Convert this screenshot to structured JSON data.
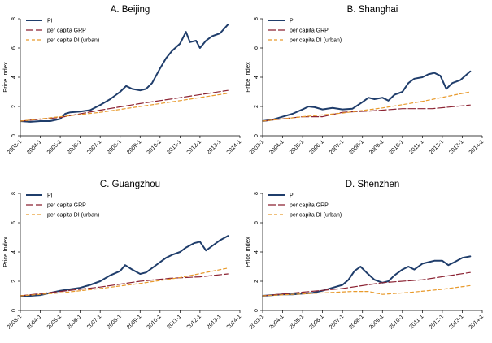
{
  "chart_data": [
    {
      "type": "line",
      "title": "A. Beijing",
      "ylabel": "Price Index",
      "xlabel": "",
      "ylim": [
        0,
        8
      ],
      "yticks": [
        "0",
        "2",
        "4",
        "6",
        "8"
      ],
      "xlim": [
        2003.0,
        2014.0
      ],
      "xticks": [
        "2003-1",
        "2004-1",
        "2005-1",
        "2006-1",
        "2007-1",
        "2008-1",
        "2009-1",
        "2010-1",
        "2011-1",
        "2012-1",
        "2013-1",
        "2014-1"
      ],
      "legend_position": "top-left",
      "series": [
        {
          "name": "PI",
          "color": "#1f3d6b",
          "style": "solid",
          "x": [
            2003.0,
            2003.5,
            2004.0,
            2004.5,
            2005.0,
            2005.25,
            2005.5,
            2006.0,
            2006.5,
            2007.0,
            2007.5,
            2008.0,
            2008.3,
            2008.6,
            2009.0,
            2009.3,
            2009.6,
            2010.0,
            2010.3,
            2010.6,
            2011.0,
            2011.3,
            2011.5,
            2011.8,
            2012.0,
            2012.3,
            2012.6,
            2013.0,
            2013.4
          ],
          "y": [
            1.0,
            0.95,
            1.0,
            1.0,
            1.15,
            1.5,
            1.6,
            1.65,
            1.75,
            2.1,
            2.5,
            3.0,
            3.4,
            3.2,
            3.1,
            3.2,
            3.6,
            4.6,
            5.3,
            5.8,
            6.3,
            7.1,
            6.4,
            6.5,
            6.0,
            6.5,
            6.8,
            7.0,
            7.6
          ]
        },
        {
          "name": "per capita GRP",
          "color": "#8b2232",
          "style": "longdash",
          "x": [
            2003.0,
            2005.0,
            2007.0,
            2009.0,
            2011.0,
            2013.4
          ],
          "y": [
            1.0,
            1.25,
            1.75,
            2.2,
            2.6,
            3.1
          ]
        },
        {
          "name": "per capita DI (urban)",
          "color": "#e89a2c",
          "style": "dash",
          "x": [
            2003.0,
            2005.0,
            2007.0,
            2009.0,
            2011.0,
            2013.4
          ],
          "y": [
            1.0,
            1.3,
            1.6,
            2.0,
            2.4,
            2.9
          ]
        }
      ]
    },
    {
      "type": "line",
      "title": "B. Shanghai",
      "ylabel": "Price Index",
      "xlabel": "",
      "ylim": [
        0,
        8
      ],
      "yticks": [
        "0",
        "2",
        "4",
        "6",
        "8"
      ],
      "xlim": [
        2003.0,
        2014.0
      ],
      "xticks": [
        "2003-1",
        "2004-1",
        "2005-1",
        "2006-1",
        "2007-1",
        "2008-1",
        "2009-1",
        "2010-1",
        "2011-1",
        "2012-1",
        "2013-1",
        "2014-1"
      ],
      "legend_position": "top-left",
      "series": [
        {
          "name": "PI",
          "color": "#1f3d6b",
          "style": "solid",
          "x": [
            2003.0,
            2003.5,
            2004.0,
            2004.5,
            2005.0,
            2005.3,
            2005.6,
            2006.0,
            2006.5,
            2007.0,
            2007.5,
            2008.0,
            2008.3,
            2008.6,
            2009.0,
            2009.3,
            2009.6,
            2010.0,
            2010.3,
            2010.6,
            2011.0,
            2011.3,
            2011.6,
            2011.9,
            2012.2,
            2012.5,
            2012.9,
            2013.4
          ],
          "y": [
            1.0,
            1.1,
            1.3,
            1.5,
            1.8,
            2.0,
            1.95,
            1.8,
            1.9,
            1.8,
            1.85,
            2.3,
            2.6,
            2.5,
            2.6,
            2.4,
            2.8,
            3.0,
            3.6,
            3.9,
            4.0,
            4.2,
            4.3,
            4.1,
            3.2,
            3.6,
            3.8,
            4.4
          ]
        },
        {
          "name": "per capita GRP",
          "color": "#8b2232",
          "style": "longdash",
          "x": [
            2003.0,
            2005.0,
            2006.0,
            2007.0,
            2008.5,
            2010.0,
            2011.5,
            2013.4
          ],
          "y": [
            1.0,
            1.3,
            1.3,
            1.6,
            1.7,
            1.85,
            1.85,
            2.1
          ]
        },
        {
          "name": "per capita DI (urban)",
          "color": "#e89a2c",
          "style": "dash",
          "x": [
            2003.0,
            2005.0,
            2007.0,
            2009.0,
            2011.0,
            2013.4
          ],
          "y": [
            1.0,
            1.3,
            1.55,
            1.9,
            2.35,
            3.0
          ]
        }
      ]
    },
    {
      "type": "line",
      "title": "C. Guangzhou",
      "ylabel": "Price Index",
      "xlabel": "",
      "ylim": [
        0,
        8
      ],
      "yticks": [
        "0",
        "2",
        "4",
        "6",
        "8"
      ],
      "xlim": [
        2003.0,
        2014.0
      ],
      "xticks": [
        "2003-1",
        "2004-1",
        "2005-1",
        "2006-1",
        "2007-1",
        "2008-1",
        "2009-1",
        "2010-1",
        "2011-1",
        "2012-1",
        "2013-1",
        "2014-1"
      ],
      "legend_position": "top-left",
      "series": [
        {
          "name": "PI",
          "color": "#1f3d6b",
          "style": "solid",
          "x": [
            2003.0,
            2003.5,
            2004.0,
            2004.5,
            2005.0,
            2005.5,
            2006.0,
            2006.5,
            2007.0,
            2007.5,
            2008.0,
            2008.25,
            2008.6,
            2009.0,
            2009.3,
            2009.7,
            2010.0,
            2010.3,
            2010.6,
            2011.0,
            2011.3,
            2011.7,
            2012.0,
            2012.3,
            2012.7,
            2013.0,
            2013.4
          ],
          "y": [
            1.0,
            1.0,
            1.05,
            1.2,
            1.35,
            1.45,
            1.55,
            1.75,
            2.0,
            2.4,
            2.7,
            3.1,
            2.8,
            2.5,
            2.6,
            3.0,
            3.3,
            3.6,
            3.8,
            4.0,
            4.3,
            4.6,
            4.7,
            4.1,
            4.5,
            4.8,
            5.1
          ]
        },
        {
          "name": "per capita GRP",
          "color": "#8b2232",
          "style": "longdash",
          "x": [
            2003.0,
            2005.0,
            2007.0,
            2009.0,
            2010.5,
            2012.0,
            2013.4
          ],
          "y": [
            1.0,
            1.3,
            1.6,
            2.0,
            2.2,
            2.3,
            2.5
          ]
        },
        {
          "name": "per capita DI (urban)",
          "color": "#e89a2c",
          "style": "dash",
          "x": [
            2003.0,
            2005.0,
            2007.0,
            2009.0,
            2011.0,
            2013.4
          ],
          "y": [
            1.0,
            1.2,
            1.5,
            1.85,
            2.25,
            2.9
          ]
        }
      ]
    },
    {
      "type": "line",
      "title": "D. Shenzhen",
      "ylabel": "Price Index",
      "xlabel": "",
      "ylim": [
        0,
        8
      ],
      "yticks": [
        "0",
        "2",
        "4",
        "6",
        "8"
      ],
      "xlim": [
        2003.0,
        2014.0
      ],
      "xticks": [
        "2003-1",
        "2004-1",
        "2005-1",
        "2006-1",
        "2007-1",
        "2008-1",
        "2009-1",
        "2010-1",
        "2011-1",
        "2012-1",
        "2013-1",
        "2014-1"
      ],
      "legend_position": "top-left",
      "series": [
        {
          "name": "PI",
          "color": "#1f3d6b",
          "style": "solid",
          "x": [
            2003.0,
            2003.5,
            2004.0,
            2004.5,
            2005.0,
            2005.5,
            2006.0,
            2006.5,
            2007.0,
            2007.3,
            2007.6,
            2007.9,
            2008.2,
            2008.6,
            2009.0,
            2009.3,
            2009.6,
            2010.0,
            2010.3,
            2010.6,
            2011.0,
            2011.3,
            2011.6,
            2012.0,
            2012.3,
            2012.6,
            2013.0,
            2013.4
          ],
          "y": [
            1.0,
            1.05,
            1.1,
            1.1,
            1.15,
            1.2,
            1.35,
            1.55,
            1.75,
            2.1,
            2.7,
            3.0,
            2.6,
            2.1,
            1.9,
            2.0,
            2.4,
            2.8,
            3.0,
            2.8,
            3.2,
            3.3,
            3.4,
            3.4,
            3.1,
            3.3,
            3.6,
            3.7
          ]
        },
        {
          "name": "per capita GRP",
          "color": "#8b2232",
          "style": "longdash",
          "x": [
            2003.0,
            2005.0,
            2007.0,
            2009.0,
            2011.0,
            2013.4
          ],
          "y": [
            1.0,
            1.25,
            1.5,
            1.9,
            2.1,
            2.6
          ]
        },
        {
          "name": "per capita DI (urban)",
          "color": "#e89a2c",
          "style": "dash",
          "x": [
            2003.0,
            2004.5,
            2006.0,
            2007.5,
            2008.3,
            2009.0,
            2010.5,
            2012.0,
            2013.4
          ],
          "y": [
            1.0,
            1.1,
            1.2,
            1.3,
            1.3,
            1.1,
            1.25,
            1.45,
            1.7
          ]
        }
      ]
    }
  ]
}
